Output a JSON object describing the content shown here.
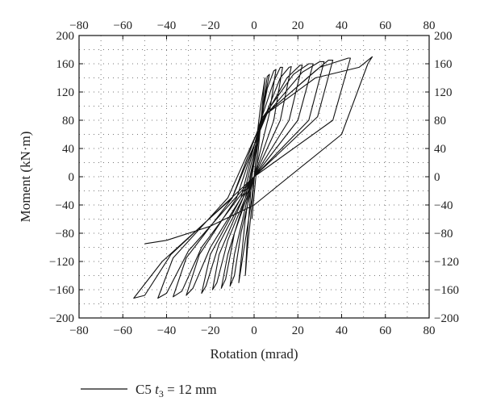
{
  "chart_data": {
    "type": "line",
    "xlabel": "Rotation (mrad)",
    "ylabel": "Moment (kN·m)",
    "xlim": [
      -80,
      80
    ],
    "ylim": [
      -200,
      200
    ],
    "xticks": [
      -80,
      -60,
      -40,
      -20,
      0,
      20,
      40,
      60,
      80
    ],
    "yticks": [
      -200,
      -160,
      -120,
      -80,
      -40,
      0,
      40,
      80,
      120,
      160,
      200
    ],
    "grid": true,
    "grid_style": "dotted",
    "mirrored_axes": true,
    "legend_position": "bottom-left",
    "series": [
      {
        "name": "C5 t3 = 12 mm",
        "legend_main": "C5 ",
        "legend_var": "t",
        "legend_sub": "3",
        "legend_rest": " = 12 mm",
        "color": "#111111",
        "x": [
          -1,
          2,
          4,
          5,
          3,
          -1,
          -3,
          -4,
          -3,
          -1,
          1,
          4,
          6,
          7,
          4,
          0,
          -4,
          -6,
          -7,
          -5,
          -1,
          2,
          6,
          9,
          10,
          7,
          0,
          -6,
          -9,
          -11,
          -9,
          -3,
          2,
          9,
          12,
          13,
          9,
          0,
          -9,
          -13,
          -15,
          -12,
          -4,
          3,
          12,
          16,
          17,
          12,
          0,
          -12,
          -17,
          -19,
          -16,
          -5,
          3,
          15,
          21,
          22,
          16,
          0,
          -16,
          -22,
          -24,
          -20,
          -6,
          3,
          18,
          25,
          27,
          20,
          0,
          -20,
          -28,
          -31,
          -25,
          -8,
          4,
          22,
          30,
          32,
          25,
          0,
          -24,
          -33,
          -37,
          -31,
          -10,
          4,
          28,
          34,
          36,
          29,
          0,
          -30,
          -40,
          -44,
          -37,
          -12,
          5,
          30,
          43,
          44,
          36,
          0,
          -38,
          -50,
          -55,
          -42,
          -10,
          6,
          28,
          48,
          54,
          52,
          40,
          0,
          -20,
          -40,
          -50
        ],
        "y": [
          -60,
          40,
          110,
          140,
          100,
          0,
          -80,
          -140,
          -100,
          -40,
          30,
          100,
          142,
          145,
          100,
          20,
          -60,
          -120,
          -150,
          -110,
          -30,
          60,
          125,
          150,
          152,
          90,
          0,
          -80,
          -140,
          -155,
          -110,
          -30,
          70,
          135,
          155,
          155,
          80,
          0,
          -80,
          -145,
          -158,
          -110,
          -30,
          70,
          140,
          155,
          156,
          80,
          0,
          -90,
          -150,
          -160,
          -110,
          -30,
          75,
          140,
          158,
          158,
          80,
          0,
          -95,
          -155,
          -165,
          -110,
          -30,
          80,
          145,
          160,
          160,
          80,
          0,
          -100,
          -158,
          -168,
          -110,
          -30,
          82,
          148,
          163,
          163,
          80,
          0,
          -100,
          -162,
          -170,
          -115,
          -30,
          85,
          150,
          165,
          165,
          85,
          0,
          -105,
          -165,
          -172,
          -115,
          -30,
          88,
          155,
          168,
          168,
          80,
          0,
          -110,
          -168,
          -172,
          -120,
          -30,
          90,
          140,
          155,
          170,
          160,
          60,
          -40,
          -70,
          -90,
          -95
        ]
      }
    ]
  }
}
